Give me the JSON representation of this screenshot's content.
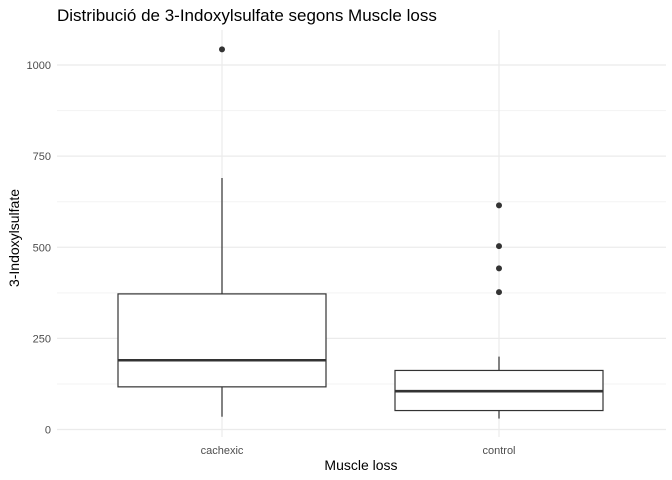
{
  "chart_data": {
    "type": "boxplot",
    "title": "Distribució de 3-Indoxylsulfate segons Muscle loss",
    "xlabel": "Muscle loss",
    "ylabel": "3-Indoxylsulfate",
    "categories": [
      "cachexic",
      "control"
    ],
    "ylim": [
      0,
      1000
    ],
    "yticks": [
      0,
      250,
      500,
      750,
      1000
    ],
    "grid": true,
    "boxes": [
      {
        "category": "cachexic",
        "whisker_low": 35,
        "q1": 117,
        "median": 190,
        "q3": 372,
        "whisker_high": 690,
        "outliers": [
          1043
        ]
      },
      {
        "category": "control",
        "whisker_low": 30,
        "q1": 52,
        "median": 105,
        "q3": 162,
        "whisker_high": 200,
        "outliers": [
          377,
          442,
          503,
          615
        ]
      }
    ],
    "colors": {
      "box_line": "#333333",
      "grid_major": "#ebebeb",
      "grid_minor": "#f3f3f3",
      "point": "#333333"
    }
  }
}
